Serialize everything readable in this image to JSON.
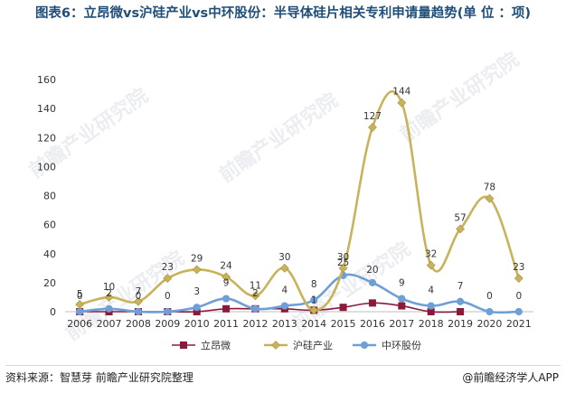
{
  "title": "图表6：立昂微vs沪硅产业vs中环股份：半导体硅片相关专利申请量趋势(单 位 ：项)",
  "source": "资料来源：智慧芽 前瞻产业研究院整理",
  "brand": "@前瞻经济学人APP",
  "watermark": "前瞻产业研究院",
  "chart_data": {
    "type": "line",
    "categories": [
      "2006",
      "2007",
      "2008",
      "2009",
      "2010",
      "2011",
      "2012",
      "2013",
      "2014",
      "2015",
      "2016",
      "2017",
      "2018",
      "2019",
      "2020",
      "2021"
    ],
    "ylim": [
      0,
      160
    ],
    "yticks": [
      0,
      20,
      40,
      60,
      80,
      100,
      120,
      140,
      160
    ],
    "legend_position": "bottom",
    "series": [
      {
        "name": "立昂微",
        "color": "#8b1a3a",
        "marker": "square",
        "values": [
          0,
          0,
          0,
          0,
          0,
          2,
          2,
          2,
          1,
          3,
          6,
          4,
          0,
          0,
          null,
          null
        ],
        "labels": [
          null,
          null,
          null,
          null,
          null,
          null,
          null,
          null,
          null,
          null,
          null,
          null,
          null,
          null,
          null,
          null
        ]
      },
      {
        "name": "沪硅产业",
        "color": "#c9b35a",
        "marker": "diamond",
        "values": [
          5,
          10,
          7,
          23,
          29,
          24,
          11,
          30,
          1,
          30,
          127,
          144,
          32,
          57,
          78,
          23
        ],
        "labels": [
          "5",
          "10",
          "7",
          "23",
          "29",
          "24",
          "11",
          "30",
          "1",
          "30",
          "127",
          "144",
          "32",
          "57",
          "78",
          "23"
        ]
      },
      {
        "name": "中环股份",
        "color": "#6e9fd6",
        "marker": "circle",
        "values": [
          0,
          2,
          0,
          0,
          3,
          9,
          2,
          4,
          8,
          25,
          20,
          9,
          4,
          7,
          0,
          0
        ],
        "labels": [
          "0",
          "2",
          "0",
          "0",
          "3",
          "9",
          "2",
          "4",
          "8",
          "25",
          "20",
          "9",
          "4",
          "7",
          "0",
          "0"
        ]
      }
    ]
  }
}
